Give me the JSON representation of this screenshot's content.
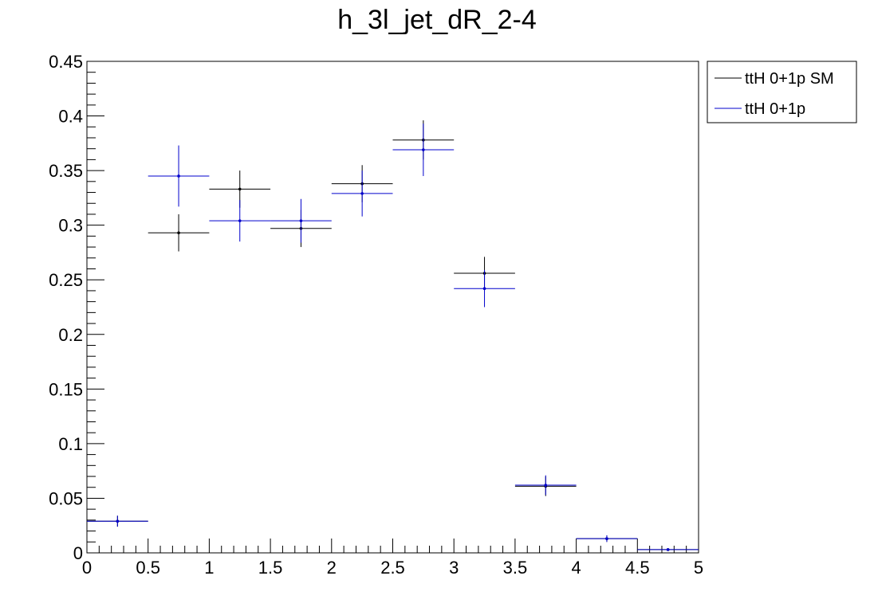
{
  "chart_data": {
    "type": "scatter",
    "title": "h_3l_jet_dR_2-4",
    "xlabel": "",
    "ylabel": "",
    "xlim": [
      0,
      5
    ],
    "ylim": [
      0,
      0.45
    ],
    "x_ticks": [
      "0",
      "0.5",
      "1",
      "1.5",
      "2",
      "2.5",
      "3",
      "3.5",
      "4",
      "4.5",
      "5"
    ],
    "y_ticks": [
      "0",
      "0.05",
      "0.1",
      "0.15",
      "0.2",
      "0.25",
      "0.3",
      "0.35",
      "0.4",
      "0.45"
    ],
    "grid": false,
    "legend_position": "outside-top-right",
    "bin_edges": [
      0,
      0.5,
      1,
      1.5,
      2,
      2.5,
      3,
      3.5,
      4,
      4.5,
      5
    ],
    "series": [
      {
        "name": "ttH 0+1p SM",
        "color": "#000000",
        "values": [
          0.029,
          0.293,
          0.333,
          0.297,
          0.338,
          0.378,
          0.256,
          0.061,
          0.013,
          0.003
        ],
        "errors": [
          0.005,
          0.017,
          0.017,
          0.017,
          0.017,
          0.018,
          0.015,
          0.009,
          0.003,
          0.001
        ]
      },
      {
        "name": "ttH 0+1p",
        "color": "#0000cc",
        "values": [
          0.029,
          0.345,
          0.304,
          0.304,
          0.329,
          0.369,
          0.242,
          0.062,
          0.013,
          0.003
        ],
        "errors": [
          0.005,
          0.028,
          0.019,
          0.02,
          0.021,
          0.024,
          0.017,
          0.009,
          0.003,
          0.001
        ]
      }
    ]
  }
}
